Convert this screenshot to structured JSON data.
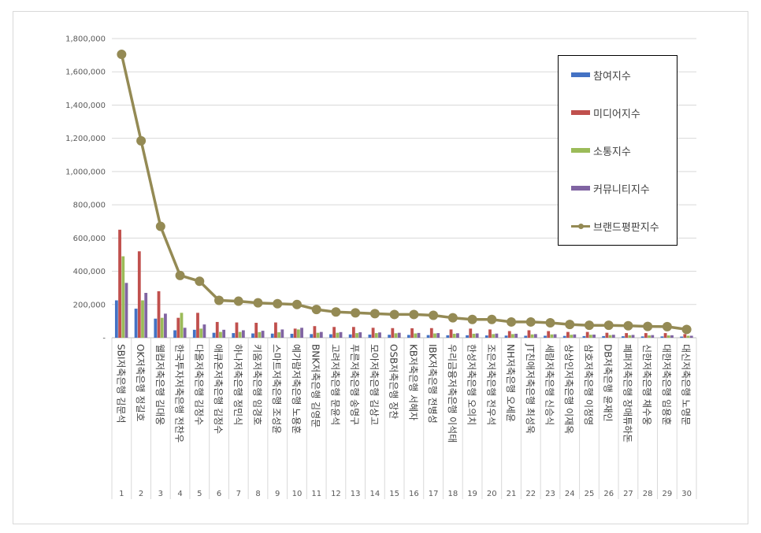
{
  "chart_data": {
    "type": "bar",
    "title": "",
    "xlabel": "",
    "ylabel": "",
    "ylim": [
      0,
      1800000
    ],
    "yticks": [
      "-",
      "200,000",
      "400,000",
      "600,000",
      "800,000",
      "1,000,000",
      "1,200,000",
      "1,400,000",
      "1,600,000",
      "1,800,000"
    ],
    "ranks": [
      "1",
      "2",
      "3",
      "4",
      "5",
      "6",
      "7",
      "8",
      "9",
      "10",
      "11",
      "12",
      "13",
      "14",
      "15",
      "16",
      "17",
      "18",
      "19",
      "20",
      "21",
      "22",
      "23",
      "24",
      "25",
      "26",
      "27",
      "28",
      "29",
      "30"
    ],
    "categories": [
      "SBI저축은행 김문석",
      "OK저축은행 정길호",
      "웰컴저축은행 김대웅",
      "한국투자저축은행 전찬우",
      "다올저축은행 김정수",
      "애큐온저축은행 김정수",
      "하나저축은행 정민식",
      "키움저축은행 임경호",
      "스마트저축은행 조성윤",
      "예가람저축은행 노용훈",
      "BNK저축은행 김영문",
      "고려저축은행 문윤석",
      "푸른저축은행 송명구",
      "모아저축은행 김상고",
      "OSB저축은행 장찬",
      "KB저축은행 서혜자",
      "IBK저축은행 전병성",
      "우리금융저축은행 이석태",
      "한성저축은행 오의치",
      "조은저축은행 전우석",
      "NH저축은행 오세윤",
      "JT친애저축은행 최성욱",
      "세람저축은행 신승식",
      "상상인저축은행 이재옥",
      "삼호저축은행 이정영",
      "DB저축은행 윤재인",
      "페퍼저축은행 장매튜하돈",
      "신한저축은행 채수웅",
      "대한저축은행 임용훈",
      "대신저축은행 노명문"
    ],
    "series": [
      {
        "name": "참여지수",
        "color": "#4472C4",
        "kind": "bar",
        "values": [
          225000,
          175000,
          115000,
          45000,
          48000,
          30000,
          28000,
          26000,
          25000,
          24000,
          22000,
          21000,
          20000,
          19000,
          18000,
          17000,
          16000,
          15000,
          15000,
          14000,
          13000,
          12000,
          12000,
          11000,
          10000,
          10000,
          9000,
          8000,
          8000,
          7000
        ]
      },
      {
        "name": "미디어지수",
        "color": "#C0504D",
        "kind": "bar",
        "values": [
          650000,
          520000,
          280000,
          120000,
          150000,
          95000,
          92000,
          90000,
          92000,
          55000,
          70000,
          65000,
          65000,
          60000,
          58000,
          57000,
          58000,
          50000,
          55000,
          50000,
          40000,
          45000,
          40000,
          35000,
          35000,
          30000,
          28000,
          28000,
          28000,
          22000
        ]
      },
      {
        "name": "소통지수",
        "color": "#9BBB59",
        "kind": "bar",
        "values": [
          490000,
          225000,
          120000,
          150000,
          55000,
          35000,
          35000,
          34000,
          33000,
          50000,
          30000,
          30000,
          28000,
          28000,
          27000,
          26000,
          26000,
          24000,
          24000,
          22000,
          22000,
          20000,
          20000,
          18000,
          18000,
          16000,
          15000,
          14000,
          14000,
          12000
        ]
      },
      {
        "name": "커뮤니티지수",
        "color": "#8064A2",
        "kind": "bar",
        "values": [
          330000,
          270000,
          145000,
          60000,
          80000,
          48000,
          45000,
          42000,
          50000,
          60000,
          35000,
          34000,
          33000,
          32000,
          30000,
          29000,
          28000,
          27000,
          26000,
          25000,
          24000,
          22000,
          21000,
          20000,
          19000,
          18000,
          17000,
          16000,
          15000,
          12000
        ]
      },
      {
        "name": "브랜드평판지수",
        "color": "#948A54",
        "kind": "line",
        "values": [
          1705000,
          1185000,
          670000,
          375000,
          340000,
          225000,
          220000,
          210000,
          205000,
          200000,
          170000,
          155000,
          150000,
          145000,
          140000,
          140000,
          135000,
          120000,
          110000,
          110000,
          95000,
          95000,
          90000,
          80000,
          75000,
          75000,
          72000,
          68000,
          67000,
          50000
        ]
      }
    ],
    "legend": "right-inside"
  }
}
